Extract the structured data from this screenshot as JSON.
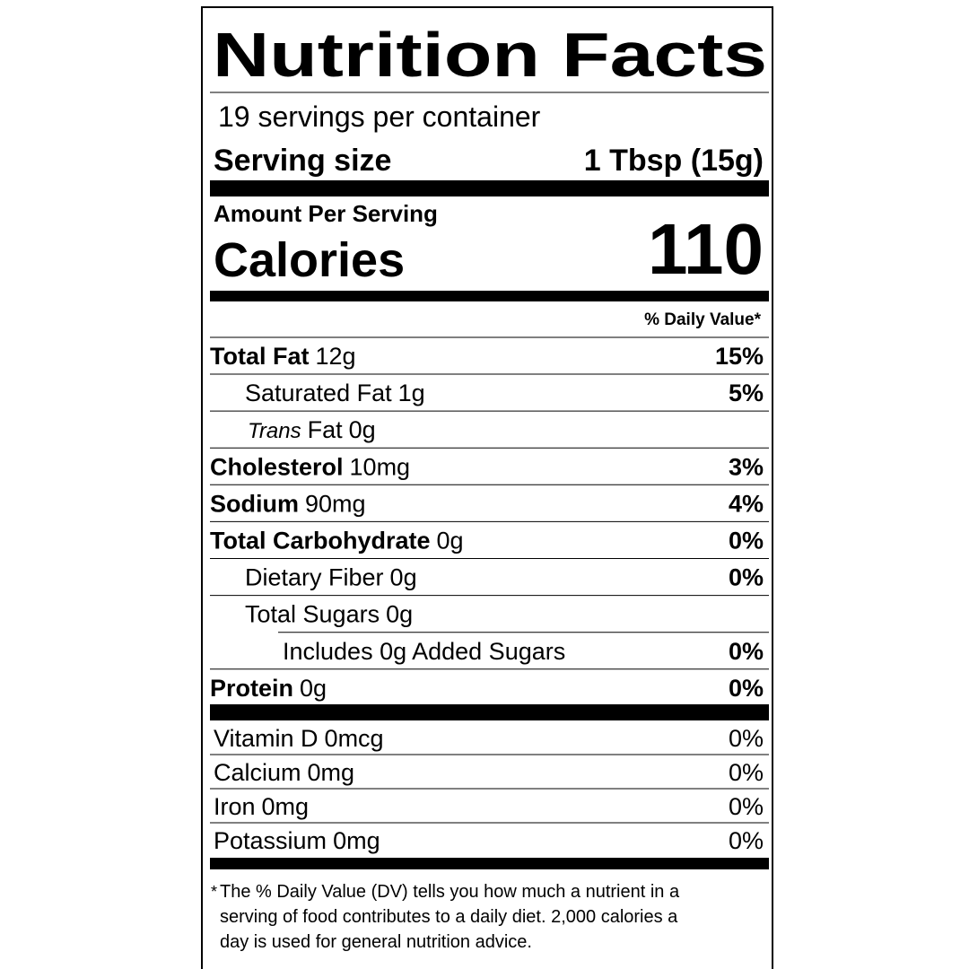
{
  "title": "Nutrition Facts",
  "servings": "19 servings per container",
  "serving_size": {
    "label": "Serving size",
    "value": "1 Tbsp (15g)"
  },
  "amount_per_serving": "Amount Per Serving",
  "calories": {
    "label": "Calories",
    "value": "110"
  },
  "daily_value_header": "% Daily Value*",
  "nutrients": [
    {
      "name": "Total Fat",
      "amount": "12g",
      "dv": "15%",
      "sub": [
        {
          "name": "Saturated Fat",
          "amount": "1g",
          "dv": "5%"
        },
        {
          "name_italic": "Trans",
          "name": "Fat",
          "amount": "0g"
        }
      ]
    },
    {
      "name": "Cholesterol",
      "amount": "10mg",
      "dv": "3%"
    },
    {
      "name": "Sodium",
      "amount": "90mg",
      "dv": "4%"
    },
    {
      "name": "Total Carbohydrate",
      "amount": "0g",
      "dv": "0%",
      "sub": [
        {
          "name": "Dietary Fiber",
          "amount": "0g",
          "dv": "0%"
        },
        {
          "name": "Total Sugars",
          "amount": "0g",
          "sub": [
            {
              "name": "Includes 0g Added Sugars",
              "dv": "0%"
            }
          ]
        }
      ]
    },
    {
      "name": "Protein",
      "amount": "0g",
      "dv": "0%"
    }
  ],
  "vitamins": [
    {
      "name": "Vitamin D",
      "amount": "0mcg",
      "dv": "0%"
    },
    {
      "name": "Calcium",
      "amount": "0mg",
      "dv": "0%"
    },
    {
      "name": "Iron",
      "amount": "0mg",
      "dv": "0%"
    },
    {
      "name": "Potassium",
      "amount": "0mg",
      "dv": "0%"
    }
  ],
  "footnote": {
    "marker": "*",
    "lines": [
      "The % Daily Value (DV) tells you how much a nutrient in a",
      "serving of food contributes to a daily diet. 2,000 calories a",
      "day is used for general nutrition advice."
    ]
  }
}
